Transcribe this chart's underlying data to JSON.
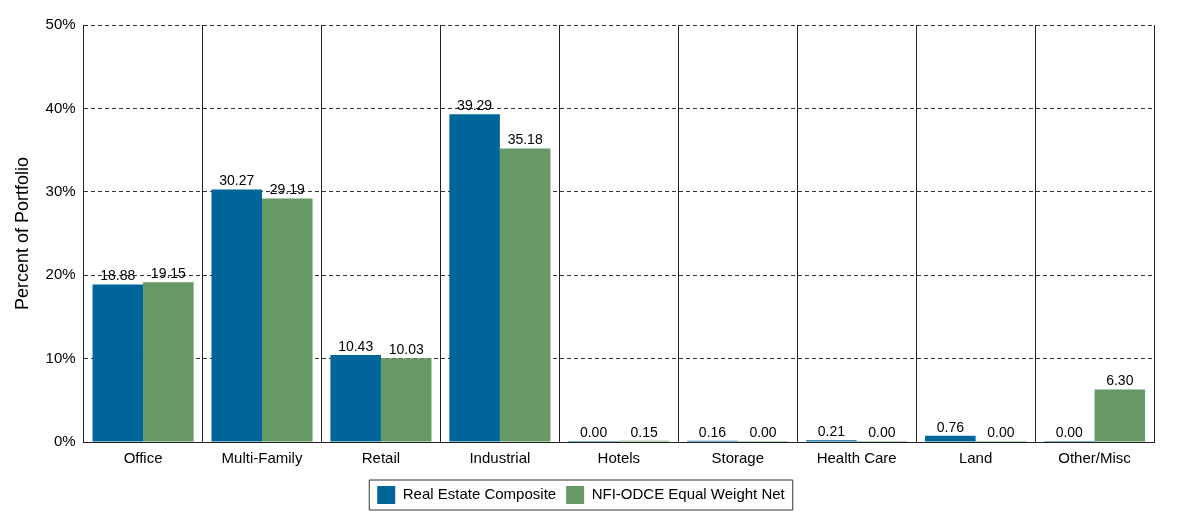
{
  "chart_data": {
    "type": "bar",
    "ylabel": "Percent of Portfolio",
    "categories": [
      "Office",
      "Multi-Family",
      "Retail",
      "Industrial",
      "Hotels",
      "Storage",
      "Health Care",
      "Land",
      "Other/Misc"
    ],
    "series": [
      {
        "name": "Real Estate Composite",
        "color": "#006699",
        "values": [
          18.88,
          30.27,
          10.43,
          39.29,
          0.0,
          0.16,
          0.21,
          0.76,
          0.0
        ],
        "value_labels": [
          "18.88",
          "30.27",
          "10.43",
          "39.29",
          "0.00",
          "0.16",
          "0.21",
          "0.76",
          "0.00"
        ]
      },
      {
        "name": "NFI-ODCE Equal Weight Net",
        "color": "#669966",
        "values": [
          19.15,
          29.19,
          10.03,
          35.18,
          0.15,
          0.0,
          0.0,
          0.0,
          6.3
        ],
        "value_labels": [
          "19.15",
          "29.19",
          "10.03",
          "35.18",
          "0.15",
          "0.00",
          "0.00",
          "0.00",
          "6.30"
        ]
      }
    ],
    "ylim": [
      0,
      50
    ],
    "yticks": [
      {
        "value": 0,
        "label": "0%"
      },
      {
        "value": 10,
        "label": "10%"
      },
      {
        "value": 20,
        "label": "20%"
      },
      {
        "value": 30,
        "label": "30%"
      },
      {
        "value": 40,
        "label": "40%"
      },
      {
        "value": 50,
        "label": "50%"
      }
    ],
    "grid": true,
    "legend": "bottom"
  }
}
